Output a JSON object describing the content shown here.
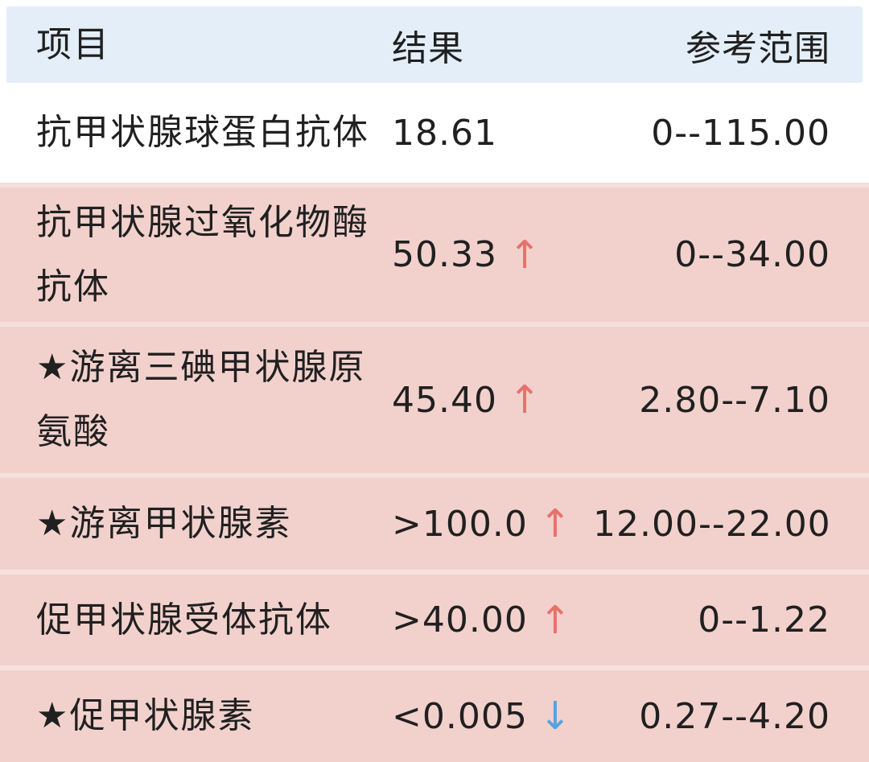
{
  "header": {
    "item": "项目",
    "result": "结果",
    "range": "参考范围"
  },
  "rows": [
    {
      "item": "抗甲状腺球蛋白抗体",
      "result": "18.61",
      "arrow_glyph": "",
      "arrow_direction": "none",
      "range": "0--115.00",
      "flag": "normal"
    },
    {
      "item": "抗甲状腺过氧化物酶抗体",
      "result": "50.33",
      "arrow_glyph": "↑",
      "arrow_direction": "up",
      "range": "0--34.00",
      "flag": "high"
    },
    {
      "item": "★游离三碘甲状腺原氨酸",
      "result": "45.40",
      "arrow_glyph": "↑",
      "arrow_direction": "up",
      "range": "2.80--7.10",
      "flag": "high"
    },
    {
      "item": "★游离甲状腺素",
      "result": ">100.0",
      "arrow_glyph": "↑",
      "arrow_direction": "up",
      "range": "12.00--22.00",
      "flag": "high"
    },
    {
      "item": "促甲状腺受体抗体",
      "result": ">40.00",
      "arrow_glyph": "↑",
      "arrow_direction": "up",
      "range": "0--1.22",
      "flag": "high"
    },
    {
      "item": "★促甲状腺素",
      "result": "<0.005",
      "arrow_glyph": "↓",
      "arrow_direction": "down",
      "range": "0.27--4.20",
      "flag": "low"
    }
  ],
  "colors": {
    "header_bg": "#E4EEF8",
    "row_highlight": "#F2D1CD",
    "separator": "#F5E0DC",
    "text": "#202020",
    "arrow_up": "#E7726B",
    "arrow_down": "#55A4DF"
  }
}
